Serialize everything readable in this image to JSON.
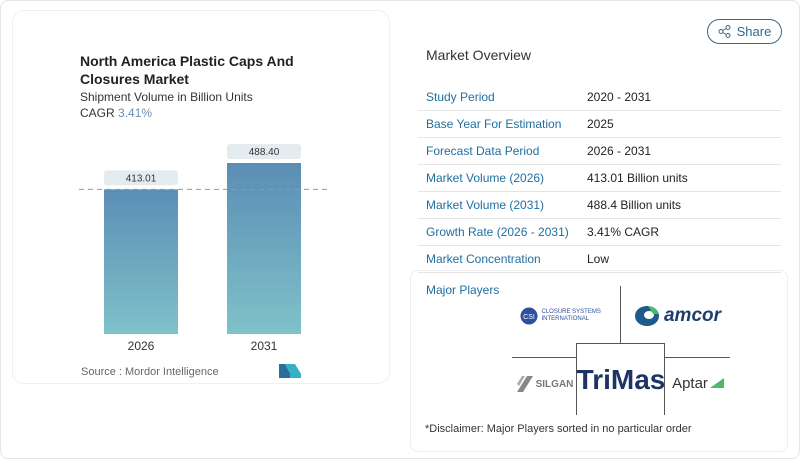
{
  "chart_data": {
    "type": "bar",
    "title": "North America Plastic Caps And Closures Market",
    "subtitle": "Shipment Volume in Billion Units",
    "cagr_label": "CAGR",
    "cagr_value": "3.41%",
    "categories": [
      "2026",
      "2031"
    ],
    "values": [
      413.01,
      488.4
    ],
    "data_labels": [
      "413.01",
      "488.40"
    ],
    "ylim": [
      0,
      500
    ],
    "colors": {
      "bar_top": "#5b8db5",
      "bar_bottom": "#7fc2c9",
      "cagr": "#6a8fb8"
    },
    "source": "Source :  Mordor Intelligence"
  },
  "share": {
    "label": "Share",
    "icon": "share-icon"
  },
  "overview": {
    "heading": "Market Overview",
    "rows": [
      {
        "label": "Study Period",
        "value": "2020 - 2031"
      },
      {
        "label": "Base Year For Estimation",
        "value": "2025"
      },
      {
        "label": "Forecast Data Period",
        "value": "2026 - 2031"
      },
      {
        "label": "Market Volume (2026)",
        "value": "413.01 Billion units"
      },
      {
        "label": "Market Volume (2031)",
        "value": "488.4 Billion units"
      },
      {
        "label": "Growth Rate (2026 - 2031)",
        "value": "3.41% CAGR"
      },
      {
        "label": "Market Concentration",
        "value": "Low"
      }
    ]
  },
  "players": {
    "heading": "Major Players",
    "logos": [
      "CLOSURE SYSTEMS INTERNATIONAL",
      "amcor",
      "TriMas",
      "SILGAN",
      "Aptar"
    ],
    "disclaimer": "*Disclaimer: Major Players sorted in no particular order"
  }
}
